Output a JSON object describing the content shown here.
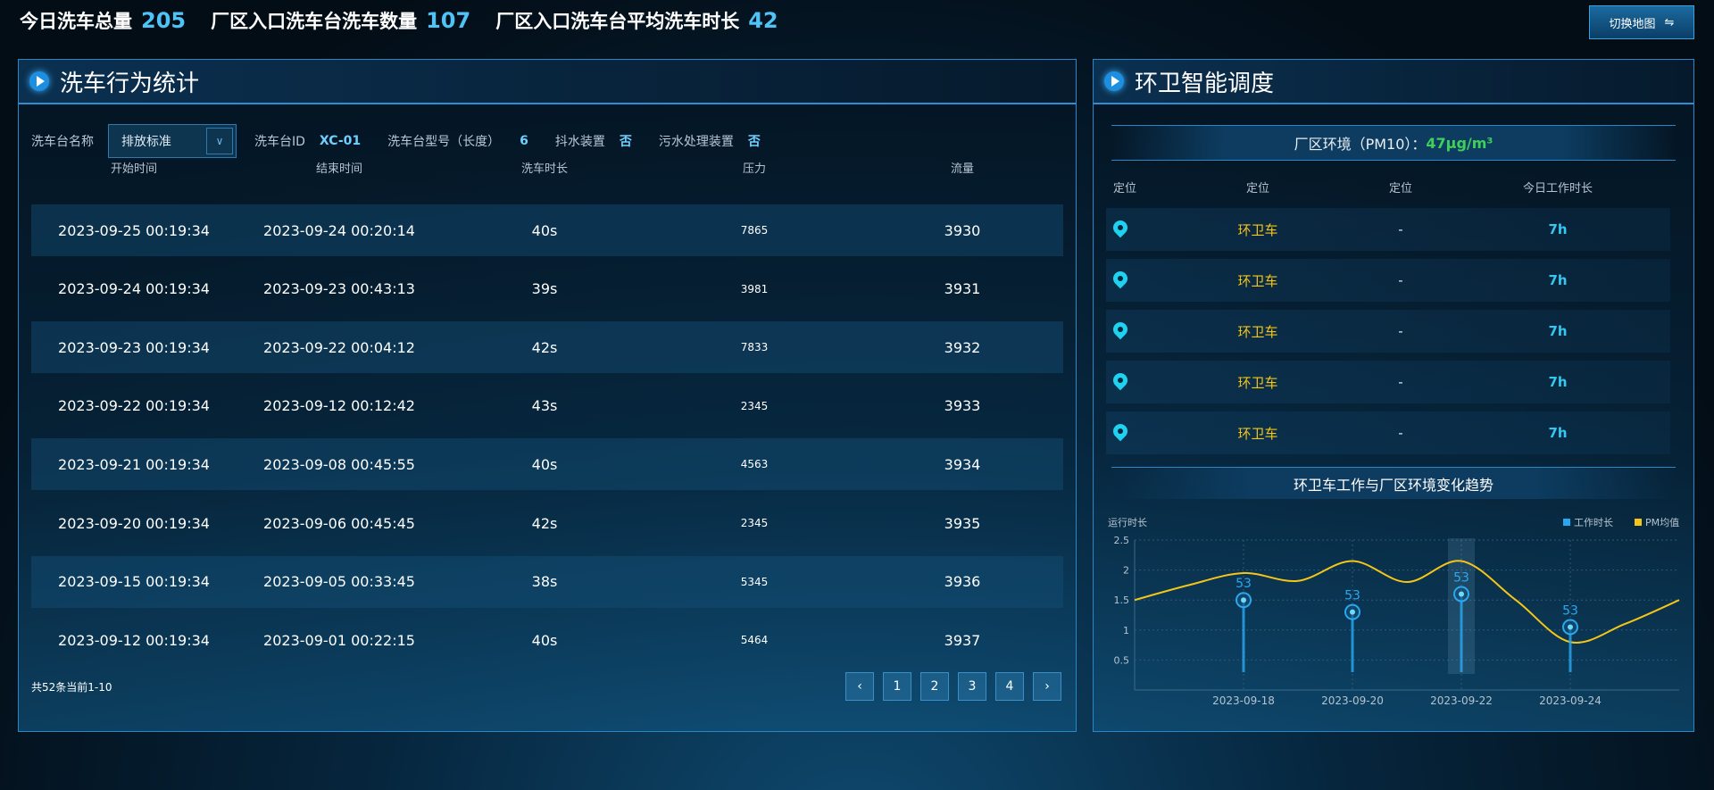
{
  "stats": [
    {
      "label": "今日洗车总量",
      "value": "205"
    },
    {
      "label": "厂区入口洗车台洗车数量",
      "value": "107"
    },
    {
      "label": "厂区入口洗车台平均洗车时长",
      "value": "42"
    }
  ],
  "switch_label": "切换地图",
  "switch_icon": "⇋",
  "left": {
    "title": "洗车行为统计",
    "filter": {
      "name_label": "洗车台名称",
      "select_value": "排放标准",
      "id_label": "洗车台ID",
      "id_value": "XC-01",
      "model_label": "洗车台型号（长度）",
      "model_value": "6",
      "shake_label": "抖水装置",
      "shake_value": "否",
      "sewage_label": "污水处理装置",
      "sewage_value": "否"
    },
    "columns": [
      "开始时间",
      "结束时间",
      "洗车时长",
      "压力",
      "流量"
    ],
    "rows": [
      [
        "2023-09-25 00:19:34",
        "2023-09-24 00:20:14",
        "40s",
        "7865",
        "3930"
      ],
      [
        "2023-09-24 00:19:34",
        "2023-09-23 00:43:13",
        "39s",
        "3981",
        "3931"
      ],
      [
        "2023-09-23 00:19:34",
        "2023-09-22 00:04:12",
        "42s",
        "7833",
        "3932"
      ],
      [
        "2023-09-22 00:19:34",
        "2023-09-12 00:12:42",
        "43s",
        "2345",
        "3933"
      ],
      [
        "2023-09-21 00:19:34",
        "2023-09-08 00:45:55",
        "40s",
        "4563",
        "3934"
      ],
      [
        "2023-09-20 00:19:34",
        "2023-09-06 00:45:45",
        "42s",
        "2345",
        "3935"
      ],
      [
        "2023-09-15 00:19:34",
        "2023-09-05 00:33:45",
        "38s",
        "5345",
        "3936"
      ],
      [
        "2023-09-12 00:19:34",
        "2023-09-01 00:22:15",
        "40s",
        "5464",
        "3937"
      ]
    ],
    "pagination": {
      "total_text": "共52条当前1-10",
      "prev": "‹",
      "pages": [
        "1",
        "2",
        "3",
        "4"
      ],
      "next": "›"
    }
  },
  "right": {
    "title": "环卫智能调度",
    "pm_label": "厂区环境（PM10）：",
    "pm_value": "47μg/m³",
    "columns": [
      "定位",
      "定位",
      "定位",
      "今日工作时长"
    ],
    "rows": [
      [
        "环卫车",
        "-",
        "7h"
      ],
      [
        "环卫车",
        "-",
        "7h"
      ],
      [
        "环卫车",
        "-",
        "7h"
      ],
      [
        "环卫车",
        "-",
        "7h"
      ],
      [
        "环卫车",
        "-",
        "7h"
      ]
    ],
    "chart_title": "环卫车工作与厂区环境变化趋势"
  },
  "chart_data": {
    "type": "line",
    "ylabel": "运行时长",
    "ylim": [
      0,
      2.5
    ],
    "yticks": [
      "2.5",
      "2",
      "1.5",
      "1",
      "0.5"
    ],
    "x": [
      "2023-09-16",
      "2023-09-17",
      "2023-09-18",
      "2023-09-19",
      "2023-09-20",
      "2023-09-21",
      "2023-09-22",
      "2023-09-23",
      "2023-09-24",
      "2023-09-25",
      "2023-09-26"
    ],
    "xtick_labels": [
      "2023-09-18",
      "2023-09-20",
      "2023-09-22",
      "2023-09-24"
    ],
    "series": [
      {
        "name": "工作时长",
        "type": "pictorial-stem",
        "color": "#29a8f0",
        "x": [
          "2023-09-18",
          "2023-09-20",
          "2023-09-22",
          "2023-09-24"
        ],
        "values": [
          1.5,
          1.3,
          1.6,
          1.05
        ],
        "labels": [
          "53",
          "53",
          "53",
          "53"
        ]
      },
      {
        "name": "PM均值",
        "type": "smooth-line",
        "color": "#f5c518",
        "values": [
          1.5,
          1.75,
          1.95,
          1.82,
          2.15,
          1.8,
          2.15,
          1.5,
          0.8,
          1.1,
          1.5
        ]
      }
    ],
    "highlighted": "2023-09-22",
    "legend": "top-right",
    "grid": true
  }
}
